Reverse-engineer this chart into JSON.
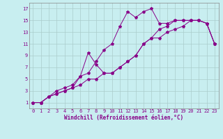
{
  "background_color": "#c8eef0",
  "line_color": "#880088",
  "grid_color": "#aacccc",
  "xlabel": "Windchill (Refroidissement éolien,°C)",
  "xlabel_fontsize": 5.5,
  "tick_fontsize": 5,
  "xlim": [
    -0.5,
    23.5
  ],
  "ylim": [
    0,
    18
  ],
  "xticks": [
    0,
    1,
    2,
    3,
    4,
    5,
    6,
    7,
    8,
    9,
    10,
    11,
    12,
    13,
    14,
    15,
    16,
    17,
    18,
    19,
    20,
    21,
    22,
    23
  ],
  "yticks": [
    1,
    3,
    5,
    7,
    9,
    11,
    13,
    15,
    17
  ],
  "line1_x": [
    0,
    1,
    2,
    3,
    4,
    5,
    6,
    7,
    8,
    9,
    10,
    11,
    12,
    13,
    14,
    15,
    16,
    17,
    18,
    19,
    20,
    21,
    22,
    23
  ],
  "line1_y": [
    1,
    1,
    2,
    3,
    3.5,
    4,
    5.5,
    6,
    8,
    10,
    11,
    14,
    16.5,
    15.5,
    16.5,
    17,
    14.5,
    14.5,
    15,
    15,
    15,
    15,
    14.5,
    11
  ],
  "line2_x": [
    0,
    1,
    2,
    3,
    4,
    5,
    6,
    7,
    8,
    9,
    10,
    11,
    12,
    13,
    14,
    15,
    16,
    17,
    18,
    19,
    20,
    21,
    22,
    23
  ],
  "line2_y": [
    1,
    1,
    2,
    2.5,
    3,
    3.5,
    5.5,
    9.5,
    7.5,
    6,
    6,
    7,
    8,
    9,
    11,
    12,
    13.5,
    14,
    15,
    15,
    15,
    15,
    14.5,
    11
  ],
  "line3_x": [
    0,
    1,
    2,
    3,
    4,
    5,
    6,
    7,
    8,
    9,
    10,
    11,
    12,
    13,
    14,
    15,
    16,
    17,
    18,
    19,
    20,
    21,
    22,
    23
  ],
  "line3_y": [
    1,
    1,
    2,
    2.5,
    3,
    3.5,
    4,
    5,
    5,
    6,
    6,
    7,
    8,
    9,
    11,
    12,
    12,
    13,
    13.5,
    14,
    15,
    15,
    14.5,
    11
  ]
}
